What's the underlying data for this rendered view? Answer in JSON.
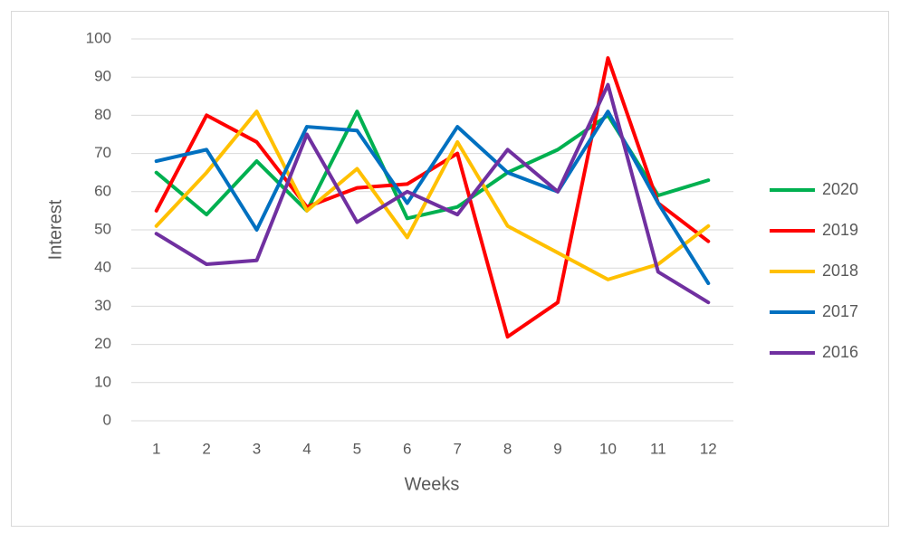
{
  "chart_data": {
    "type": "line",
    "x_label": "Weeks",
    "y_label": "Interest",
    "categories": [
      "1",
      "2",
      "3",
      "4",
      "5",
      "6",
      "7",
      "8",
      "9",
      "10",
      "11",
      "12"
    ],
    "series": [
      {
        "name": "2020",
        "color": "#00b050",
        "values": [
          65,
          54,
          68,
          55,
          81,
          53,
          56,
          65,
          71,
          80,
          59,
          63
        ]
      },
      {
        "name": "2019",
        "color": "#ff0000",
        "values": [
          55,
          80,
          73,
          56,
          61,
          62,
          70,
          22,
          31,
          95,
          57,
          47
        ]
      },
      {
        "name": "2018",
        "color": "#ffc000",
        "values": [
          51,
          65,
          81,
          55,
          66,
          48,
          73,
          51,
          44,
          37,
          41,
          51
        ]
      },
      {
        "name": "2017",
        "color": "#0070c0",
        "values": [
          68,
          71,
          50,
          77,
          76,
          57,
          77,
          65,
          60,
          81,
          57,
          36
        ]
      },
      {
        "name": "2016",
        "color": "#7030a0",
        "values": [
          49,
          41,
          42,
          75,
          52,
          60,
          54,
          71,
          60,
          88,
          39,
          31
        ]
      }
    ],
    "ylim": [
      0,
      100
    ],
    "yticks": [
      0,
      10,
      20,
      30,
      40,
      50,
      60,
      70,
      80,
      90,
      100
    ],
    "grid": true,
    "legend": "right"
  }
}
